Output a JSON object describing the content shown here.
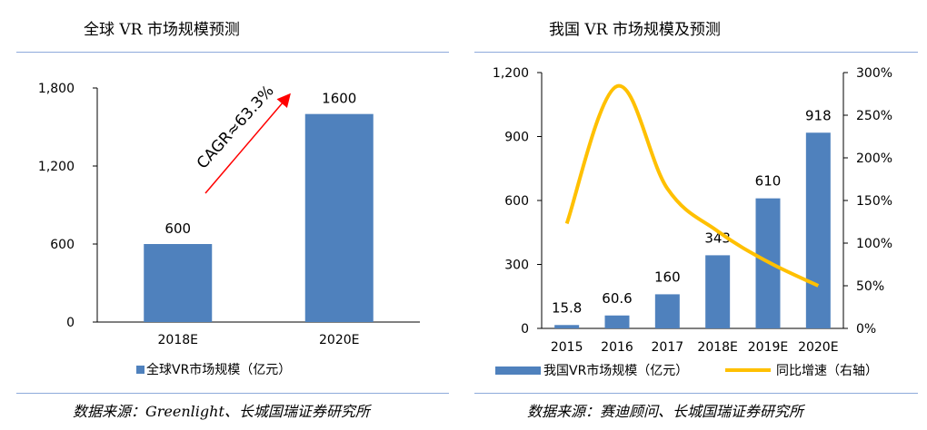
{
  "left_panel": {
    "title": "全球 VR 市场规模预测",
    "source": "数据来源：Greenlight、长城国瑞证券研究所",
    "legend": "全球VR市场规模（亿元）",
    "annotation": "CAGR≈63.3%"
  },
  "right_panel": {
    "title": "我国 VR 市场规模及预测",
    "source": "数据来源：赛迪顾问、长城国瑞证券研究所",
    "legend_bar": "我国VR市场规模（亿元）",
    "legend_line": "同比增速（右轴）"
  },
  "colors": {
    "bar": "#4f81bd",
    "line": "#ffc000",
    "arrow": "#ff0000",
    "rule": "#8eaadb"
  },
  "chart_data": [
    {
      "type": "bar",
      "title": "全球 VR 市场规模预测",
      "categories": [
        "2018E",
        "2020E"
      ],
      "series": [
        {
          "name": "全球VR市场规模（亿元）",
          "values": [
            600,
            1600
          ]
        }
      ],
      "data_labels": [
        "600",
        "1600"
      ],
      "ylim": [
        0,
        1800
      ],
      "yticks": [
        "0",
        "600",
        "1,200",
        "1,800"
      ],
      "grid": false,
      "legend": "bottom"
    },
    {
      "type": "bar",
      "title": "我国 VR 市场规模及预测",
      "categories": [
        "2015",
        "2016",
        "2017",
        "2018E",
        "2019E",
        "2020E"
      ],
      "series": [
        {
          "name": "我国VR市场规模（亿元）",
          "type": "bar",
          "values": [
            15.8,
            60.6,
            160,
            343,
            610,
            918
          ]
        },
        {
          "name": "同比增速（右轴）",
          "type": "line",
          "axis": "right",
          "values": [
            1.23,
            2.84,
            1.64,
            1.14,
            0.78,
            0.5
          ]
        }
      ],
      "data_labels": [
        "15.8",
        "60.6",
        "160",
        "343",
        "610",
        "918"
      ],
      "ylim": [
        0,
        1200
      ],
      "yticks": [
        "0",
        "300",
        "600",
        "900",
        "1,200"
      ],
      "y2lim": [
        0,
        3
      ],
      "y2ticks": [
        "0%",
        "50%",
        "100%",
        "150%",
        "200%",
        "250%",
        "300%"
      ],
      "grid": false,
      "legend": "bottom"
    }
  ]
}
